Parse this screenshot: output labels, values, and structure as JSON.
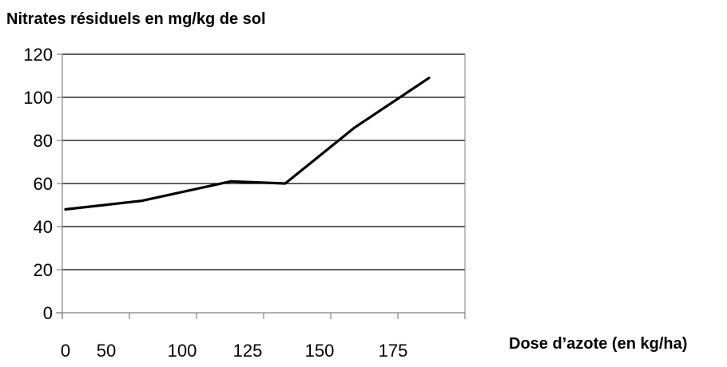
{
  "chart_data": {
    "type": "line",
    "title": "",
    "ylabel": "Nitrates résiduels en mg/kg de sol",
    "xlabel": "Dose d’azote (en kg/ha)",
    "x_tick_labels": [
      "0",
      "50",
      "100",
      "125",
      "150",
      "175"
    ],
    "y_ticks": [
      0,
      20,
      40,
      60,
      80,
      100,
      120
    ],
    "ylim": [
      0,
      120
    ],
    "grid": "horizontal",
    "series": [
      {
        "values": [
          {
            "x": 0,
            "y": 48
          },
          {
            "x": 50,
            "y": 52
          },
          {
            "x": 75,
            "y": 61
          },
          {
            "x": 100,
            "y": 60
          },
          {
            "x": 125,
            "y": 86
          },
          {
            "x": 150,
            "y": 109
          }
        ]
      }
    ],
    "colors": {
      "line": "#000000",
      "grid": "#000000",
      "axis": "#808080"
    }
  }
}
